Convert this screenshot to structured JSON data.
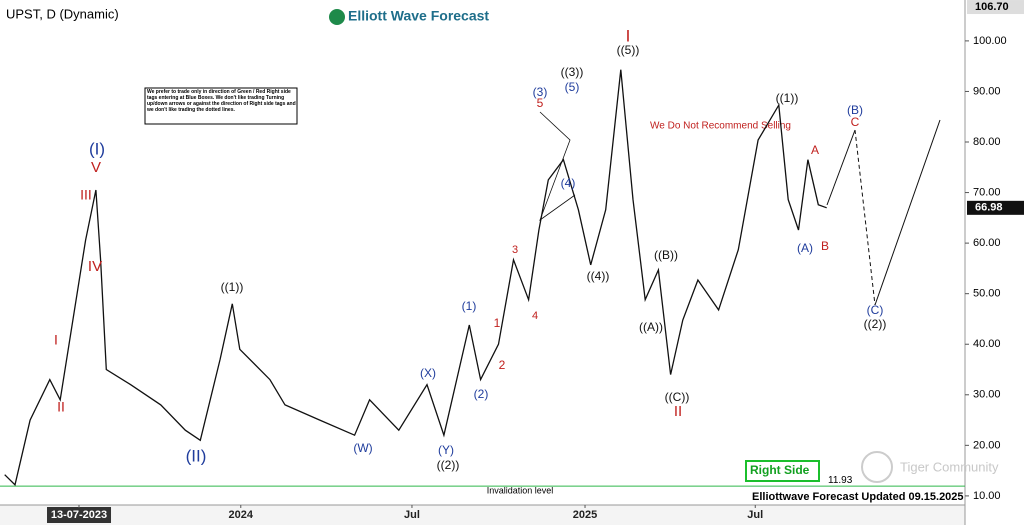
{
  "chart_data": {
    "type": "line",
    "title": "UPST, D (Dynamic)",
    "brand": "Elliott Wave Forecast",
    "x": [
      "2023-04-25",
      "2023-05-06",
      "2023-05-22",
      "2023-06-12",
      "2023-06-23",
      "2023-07-20",
      "2023-07-31",
      "2023-08-05",
      "2023-08-11",
      "2023-09-06",
      "2023-10-08",
      "2023-11-03",
      "2023-11-19",
      "2023-12-10",
      "2023-12-23",
      "2023-12-31",
      "2024-02-01",
      "2024-02-17",
      "2024-03-25",
      "2024-05-01",
      "2024-05-17",
      "2024-06-17",
      "2024-07-17",
      "2024-08-04",
      "2024-08-31",
      "2024-09-12",
      "2024-10-01",
      "2024-10-17",
      "2024-11-02",
      "2024-11-13",
      "2024-11-23",
      "2024-12-09",
      "2024-12-25",
      "2025-01-07",
      "2025-01-23",
      "2025-02-08",
      "2025-02-21",
      "2025-03-06",
      "2025-03-20",
      "2025-04-02",
      "2025-04-15",
      "2025-05-01",
      "2025-05-23",
      "2025-06-13",
      "2025-07-04",
      "2025-07-26",
      "2025-08-05",
      "2025-08-16",
      "2025-08-26",
      "2025-09-06",
      "2025-09-15"
    ],
    "series": [
      {
        "name": "UPST",
        "color": "#111111",
        "values": [
          14.2,
          12.2,
          25,
          33,
          29,
          60.6,
          70.5,
          56.7,
          35,
          32,
          28,
          23,
          21,
          37,
          48,
          39,
          33,
          28,
          25,
          22,
          29,
          23,
          32,
          22,
          43.8,
          33,
          40,
          56.7,
          48.8,
          62.6,
          72.5,
          76.5,
          66.6,
          55.7,
          66.6,
          94.3,
          68.6,
          48.8,
          54.7,
          34,
          44.8,
          52.7,
          46.8,
          58.7,
          80.4,
          87.3,
          68.6,
          62.6,
          76.5,
          67.6,
          66.98
        ]
      }
    ],
    "xlim": [
      "2023-04-20",
      "2026-02-09"
    ],
    "xticks": [
      {
        "value": "2023-07-13",
        "label": "13-07-2023"
      },
      {
        "value": "2024-01-01",
        "label": "2024"
      },
      {
        "value": "2024-07-01",
        "label": "Jul"
      },
      {
        "value": "2025-01-01",
        "label": "2025"
      },
      {
        "value": "2025-07-01",
        "label": "Jul"
      }
    ],
    "ylim": [
      8.2,
      107.1
    ],
    "yticks": [
      {
        "value": 10,
        "label": "10.00"
      },
      {
        "value": 20,
        "label": "20.00"
      },
      {
        "value": 30,
        "label": "30.00"
      },
      {
        "value": 40,
        "label": "40.00"
      },
      {
        "value": 50,
        "label": "50.00"
      },
      {
        "value": 60,
        "label": "60.00"
      },
      {
        "value": 70,
        "label": "70.00"
      },
      {
        "value": 80,
        "label": "80.00"
      },
      {
        "value": 90,
        "label": "90.00"
      },
      {
        "value": 100,
        "label": "100.00"
      }
    ],
    "high_marker": {
      "value": 106.7,
      "label": "106.70"
    },
    "last_price": 66.98,
    "invalidation": {
      "label": "Invalidation level",
      "value": 11.93
    },
    "note": "We prefer to trade only in direction of Green / Red Right side tags entering at Blue Boxes. We don't like trading Turning up/down arrows or against the direction of Right side tags and we don't like trading the dotted lines.",
    "warning": "We Do Not Recommend Selling",
    "right_side": "Right Side",
    "footer": "Elliottwave Forecast Updated 09.15.2025",
    "watermark": "Tiger Community",
    "annotations": [
      {
        "text": "(I)",
        "color": "#1f3c9c"
      },
      {
        "text": "V",
        "color": "#c0201e"
      },
      {
        "text": "III",
        "color": "#c0201e"
      },
      {
        "text": "IV",
        "color": "#c0201e"
      },
      {
        "text": "I",
        "color": "#c0201e"
      },
      {
        "text": "II",
        "color": "#c0201e"
      },
      {
        "text": "(II)",
        "color": "#1f3c9c"
      },
      {
        "text": "((1))",
        "color": "#111111"
      },
      {
        "text": "(W)",
        "color": "#1f3c9c"
      },
      {
        "text": "(X)",
        "color": "#1f3c9c"
      },
      {
        "text": "(Y)",
        "color": "#1f3c9c"
      },
      {
        "text": "((2))",
        "color": "#111111"
      },
      {
        "text": "(1)",
        "color": "#1f3c9c"
      },
      {
        "text": "(2)",
        "color": "#1f3c9c"
      },
      {
        "text": "1",
        "color": "#c0201e"
      },
      {
        "text": "2",
        "color": "#c0201e"
      },
      {
        "text": "3",
        "color": "#c0201e"
      },
      {
        "text": "4",
        "color": "#c0201e"
      },
      {
        "text": "(3)",
        "color": "#1f3c9c"
      },
      {
        "text": "5",
        "color": "#c0201e"
      },
      {
        "text": "((3))",
        "color": "#111111"
      },
      {
        "text": "(5)",
        "color": "#1f3c9c"
      },
      {
        "text": "(4)",
        "color": "#1f3c9c"
      },
      {
        "text": "((4))",
        "color": "#111111"
      },
      {
        "text": "I",
        "color": "#c0201e"
      },
      {
        "text": "((5))",
        "color": "#111111"
      },
      {
        "text": "((B))",
        "color": "#111111"
      },
      {
        "text": "((A))",
        "color": "#111111"
      },
      {
        "text": "((C))",
        "color": "#111111"
      },
      {
        "text": "II",
        "color": "#c0201e"
      },
      {
        "text": "((1))",
        "color": "#111111"
      },
      {
        "text": "A",
        "color": "#c0201e"
      },
      {
        "text": "(A)",
        "color": "#1f3c9c"
      },
      {
        "text": "B",
        "color": "#c0201e"
      },
      {
        "text": "(B)",
        "color": "#1f3c9c"
      },
      {
        "text": "C",
        "color": "#c0201e"
      },
      {
        "text": "(C)",
        "color": "#1f3c9c"
      },
      {
        "text": "((2))",
        "color": "#111111"
      }
    ]
  }
}
